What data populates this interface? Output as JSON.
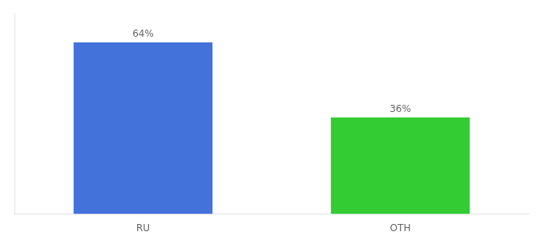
{
  "chart_data": {
    "type": "bar",
    "categories": [
      "RU",
      "OTH"
    ],
    "values": [
      64,
      36
    ],
    "value_labels": [
      "64%",
      "36%"
    ],
    "colors": [
      "#4472db",
      "#33cc33"
    ],
    "ylim": [
      0,
      75
    ],
    "grid": false,
    "data_labels": true,
    "tick_labels": "x"
  }
}
